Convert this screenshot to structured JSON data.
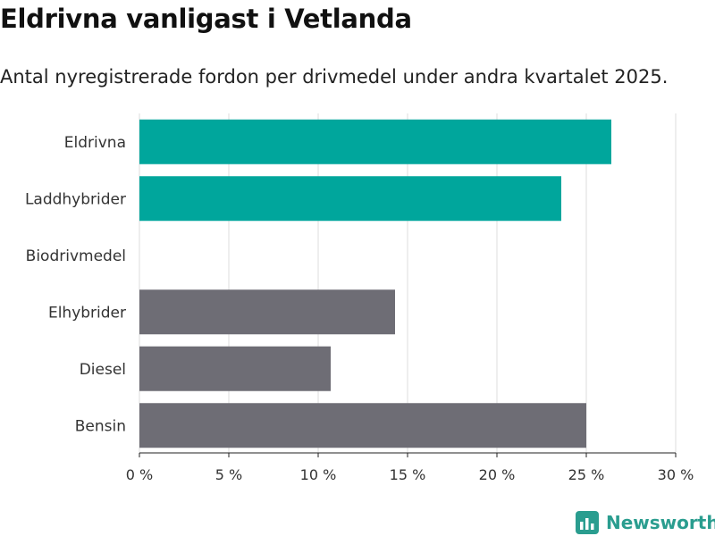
{
  "title": "Eldrivna vanligast i Vetlanda",
  "subtitle": "Antal nyregistrerade fordon per drivmedel under andra kvartalet 2025.",
  "brand": {
    "name": "Newsworthy",
    "logo_icon": "newsworthy-logo-icon"
  },
  "colors": {
    "highlight": "#00a69c",
    "default": "#6e6d75",
    "grid": "#dddddd",
    "axis": "#222222"
  },
  "chart_data": {
    "type": "bar",
    "orientation": "horizontal",
    "categories": [
      "Eldrivna",
      "Laddhybrider",
      "Biodrivmedel",
      "Elhybrider",
      "Diesel",
      "Bensin"
    ],
    "values": [
      26.4,
      23.6,
      0,
      14.3,
      10.7,
      25.0
    ],
    "highlighted": [
      true,
      true,
      false,
      false,
      false,
      false
    ],
    "xlim": [
      0,
      30
    ],
    "xticks": [
      0,
      5,
      10,
      15,
      20,
      25,
      30
    ],
    "xtick_labels": [
      "0 %",
      "5 %",
      "10 %",
      "15 %",
      "20 %",
      "25 %",
      "30 %"
    ],
    "grid": true
  }
}
